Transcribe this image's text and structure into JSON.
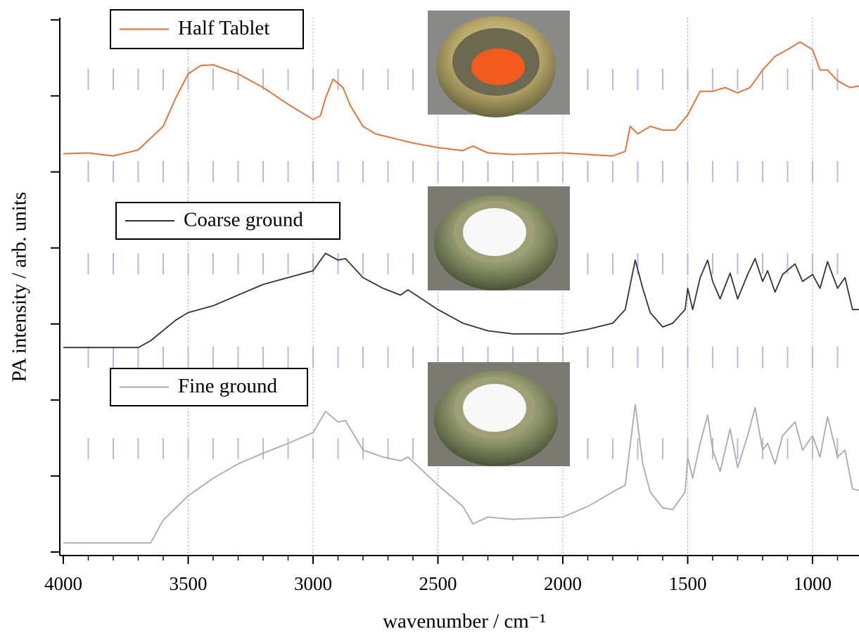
{
  "chart_data": {
    "type": "line",
    "x_label": "wavenumber / cm⁻¹",
    "y_label": "PA intensity / arb. units",
    "xlim": [
      4000,
      814
    ],
    "xticks": [
      4000,
      3500,
      3000,
      2500,
      2000,
      1500,
      1000
    ],
    "xminorticks": [
      3900,
      3800,
      3700,
      3600,
      3400,
      3300,
      3200,
      3100,
      2900,
      2800,
      2700,
      2600,
      2400,
      2300,
      2200,
      2100,
      1900,
      1800,
      1700,
      1600,
      1400,
      1300,
      1200,
      1100,
      900
    ],
    "ylim": [
      0,
      7
    ],
    "yticks": [
      0,
      1,
      2,
      3,
      4,
      5,
      6,
      7
    ],
    "grid": true,
    "series": [
      {
        "name": "Half Tablet",
        "color": "#f26522",
        "x": [
          4000,
          3900,
          3800,
          3700,
          3600,
          3550,
          3500,
          3450,
          3400,
          3300,
          3200,
          3100,
          3000,
          2970,
          2950,
          2920,
          2880,
          2850,
          2800,
          2750,
          2600,
          2500,
          2400,
          2360,
          2300,
          2200,
          2000,
          1800,
          1750,
          1730,
          1700,
          1650,
          1600,
          1550,
          1500,
          1450,
          1400,
          1350,
          1300,
          1250,
          1200,
          1150,
          1100,
          1050,
          1000,
          970,
          940,
          900,
          850,
          814
        ],
        "values": [
          5.24,
          5.25,
          5.21,
          5.29,
          5.6,
          5.97,
          6.29,
          6.4,
          6.41,
          6.29,
          6.11,
          5.89,
          5.69,
          5.74,
          5.97,
          6.22,
          6.11,
          5.87,
          5.6,
          5.5,
          5.38,
          5.32,
          5.28,
          5.34,
          5.25,
          5.23,
          5.25,
          5.21,
          5.27,
          5.6,
          5.5,
          5.6,
          5.55,
          5.55,
          5.75,
          6.06,
          6.06,
          6.11,
          6.04,
          6.11,
          6.34,
          6.52,
          6.61,
          6.71,
          6.61,
          6.34,
          6.34,
          6.2,
          6.11,
          6.13
        ]
      },
      {
        "name": "Coarse ground",
        "color": "#333333",
        "x": [
          4000,
          3700,
          3650,
          3550,
          3500,
          3400,
          3300,
          3200,
          3100,
          3000,
          2950,
          2900,
          2870,
          2800,
          2720,
          2650,
          2620,
          2500,
          2400,
          2300,
          2200,
          2100,
          2000,
          1900,
          1800,
          1750,
          1710,
          1680,
          1650,
          1600,
          1560,
          1510,
          1500,
          1480,
          1450,
          1420,
          1400,
          1370,
          1330,
          1300,
          1260,
          1230,
          1200,
          1180,
          1150,
          1120,
          1070,
          1040,
          1000,
          970,
          940,
          900,
          870,
          840,
          814
        ],
        "values": [
          2.69,
          2.69,
          2.78,
          3.05,
          3.15,
          3.24,
          3.38,
          3.52,
          3.61,
          3.7,
          3.93,
          3.84,
          3.86,
          3.61,
          3.47,
          3.38,
          3.45,
          3.19,
          3.01,
          2.91,
          2.87,
          2.87,
          2.87,
          2.93,
          3.01,
          3.19,
          3.84,
          3.47,
          3.15,
          2.96,
          3.01,
          3.19,
          3.47,
          3.19,
          3.61,
          3.84,
          3.56,
          3.33,
          3.67,
          3.33,
          3.65,
          3.86,
          3.56,
          3.7,
          3.42,
          3.65,
          3.79,
          3.56,
          3.65,
          3.47,
          3.82,
          3.47,
          3.61,
          3.19,
          3.19
        ]
      },
      {
        "name": "Fine ground",
        "color": "#aaaaaa",
        "x": [
          4000,
          3650,
          3600,
          3500,
          3400,
          3300,
          3200,
          3100,
          3000,
          2950,
          2900,
          2870,
          2800,
          2720,
          2650,
          2620,
          2500,
          2400,
          2360,
          2300,
          2200,
          2000,
          1900,
          1800,
          1750,
          1710,
          1680,
          1650,
          1600,
          1560,
          1510,
          1500,
          1480,
          1450,
          1420,
          1400,
          1370,
          1330,
          1300,
          1260,
          1230,
          1200,
          1180,
          1150,
          1120,
          1070,
          1040,
          1000,
          970,
          940,
          900,
          870,
          840,
          814
        ],
        "values": [
          0.12,
          0.12,
          0.42,
          0.74,
          0.97,
          1.16,
          1.3,
          1.43,
          1.57,
          1.85,
          1.71,
          1.73,
          1.34,
          1.25,
          1.2,
          1.25,
          0.88,
          0.6,
          0.37,
          0.46,
          0.43,
          0.46,
          0.6,
          0.79,
          0.88,
          1.94,
          1.16,
          0.79,
          0.58,
          0.56,
          0.79,
          1.25,
          0.97,
          1.43,
          1.8,
          1.34,
          1.06,
          1.62,
          1.11,
          1.53,
          1.9,
          1.34,
          1.43,
          1.16,
          1.53,
          1.71,
          1.34,
          1.53,
          1.25,
          1.78,
          1.25,
          1.34,
          0.83,
          0.81
        ]
      }
    ]
  }
}
